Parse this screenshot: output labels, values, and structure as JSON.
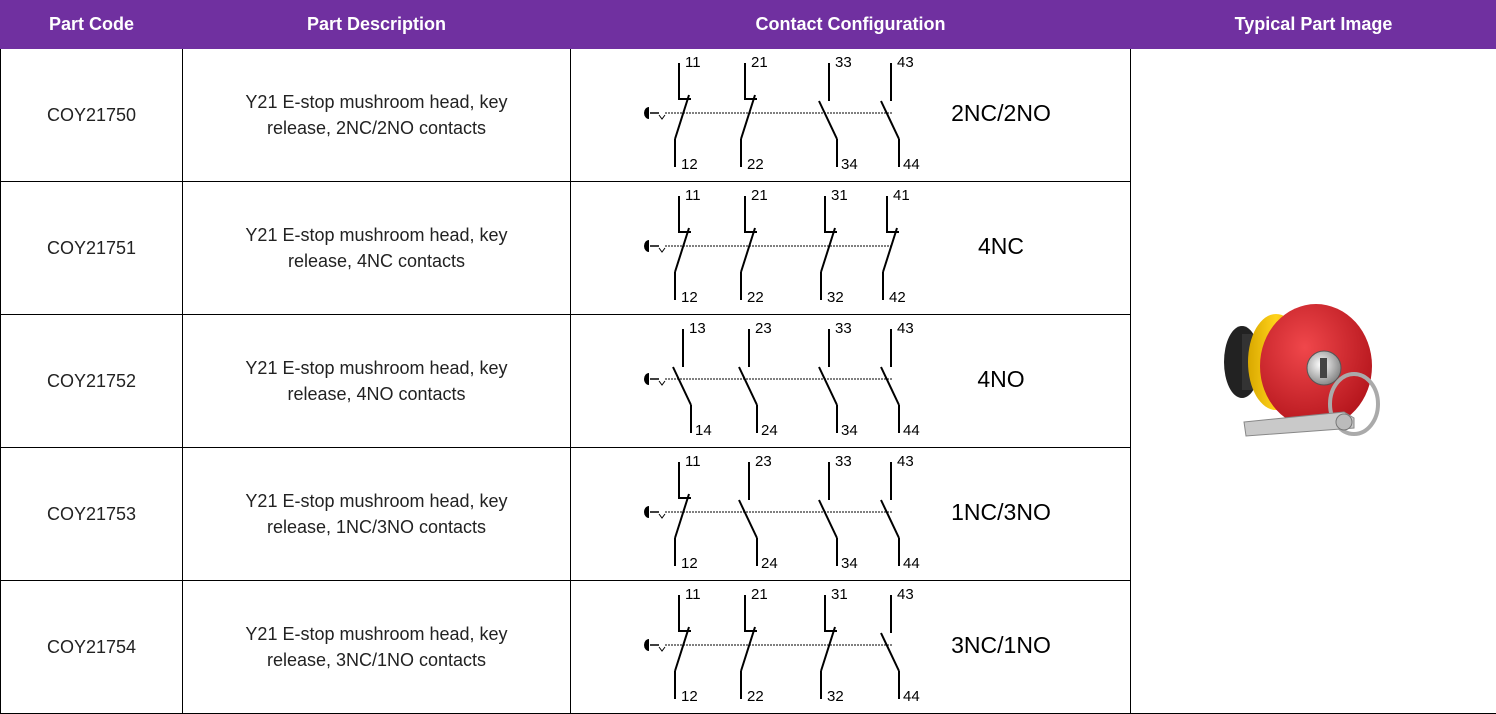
{
  "header": [
    "Part Code",
    "Part Description",
    "Contact Configuration",
    "Typical Part Image"
  ],
  "rows": [
    {
      "code": "COY21750",
      "description": "Y21 E-stop mushroom head, key release, 2NC/2NO contacts",
      "contacts": [
        [
          "11",
          "12"
        ],
        [
          "21",
          "22"
        ],
        [
          "33",
          "34"
        ],
        [
          "43",
          "44"
        ]
      ],
      "config": "2NC/2NO"
    },
    {
      "code": "COY21751",
      "description": "Y21 E-stop mushroom head, key release, 4NC contacts",
      "contacts": [
        [
          "11",
          "12"
        ],
        [
          "21",
          "22"
        ],
        [
          "31",
          "32"
        ],
        [
          "41",
          "42"
        ]
      ],
      "config": "4NC"
    },
    {
      "code": "COY21752",
      "description": "Y21 E-stop mushroom head, key release, 4NO contacts",
      "contacts": [
        [
          "13",
          "14"
        ],
        [
          "23",
          "24"
        ],
        [
          "33",
          "34"
        ],
        [
          "43",
          "44"
        ]
      ],
      "config": "4NO"
    },
    {
      "code": "COY21753",
      "description": "Y21 E-stop mushroom head, key release, 1NC/3NO contacts",
      "contacts": [
        [
          "11",
          "12"
        ],
        [
          "23",
          "24"
        ],
        [
          "33",
          "34"
        ],
        [
          "43",
          "44"
        ]
      ],
      "config": "1NC/3NO"
    },
    {
      "code": "COY21754",
      "description": "Y21 E-stop mushroom head, key release, 3NC/1NO contacts",
      "contacts": [
        [
          "11",
          "12"
        ],
        [
          "21",
          "22"
        ],
        [
          "31",
          "32"
        ],
        [
          "43",
          "44"
        ]
      ],
      "config": "3NC/1NO"
    }
  ]
}
